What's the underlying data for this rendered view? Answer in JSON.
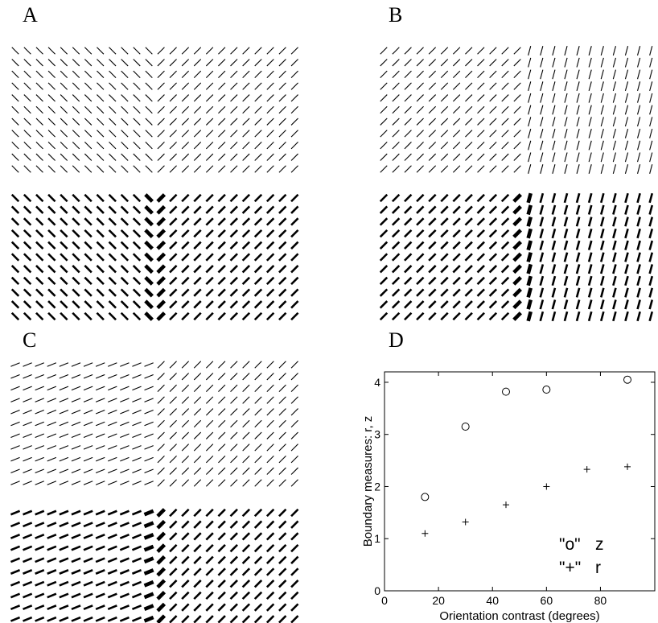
{
  "panels": {
    "a": {
      "label": "A"
    },
    "b": {
      "label": "B"
    },
    "c": {
      "label": "C"
    },
    "d": {
      "label": "D"
    }
  },
  "stimuli": {
    "a": {
      "left_orientation_deg": 135,
      "right_orientation_deg": 45
    },
    "b": {
      "left_orientation_deg": 45,
      "right_orientation_deg": 75
    },
    "c": {
      "left_orientation_deg": 22,
      "right_orientation_deg": 45
    }
  },
  "chart_data": {
    "type": "scatter",
    "title": "",
    "xlabel": "Orientation contrast (degrees)",
    "ylabel": "Boundary measures: r, z",
    "xlim": [
      0,
      90
    ],
    "ylim": [
      0,
      4.2
    ],
    "xticks": [
      0,
      20,
      40,
      60,
      80
    ],
    "yticks": [
      0,
      1,
      2,
      3,
      4
    ],
    "grid": false,
    "legend": {
      "position": "bottom-right",
      "entries": [
        {
          "marker": "\"o\"",
          "name": "z"
        },
        {
          "marker": "\"+\"",
          "name": "r"
        }
      ]
    },
    "series": [
      {
        "name": "z",
        "marker": "circle",
        "x": [
          15,
          30,
          45,
          60,
          90
        ],
        "y": [
          1.8,
          3.15,
          3.82,
          3.86,
          4.05
        ]
      },
      {
        "name": "r",
        "marker": "plus",
        "x": [
          15,
          30,
          45,
          60,
          75,
          90
        ],
        "y": [
          1.1,
          1.32,
          1.65,
          2.0,
          2.33,
          2.38
        ]
      }
    ]
  }
}
